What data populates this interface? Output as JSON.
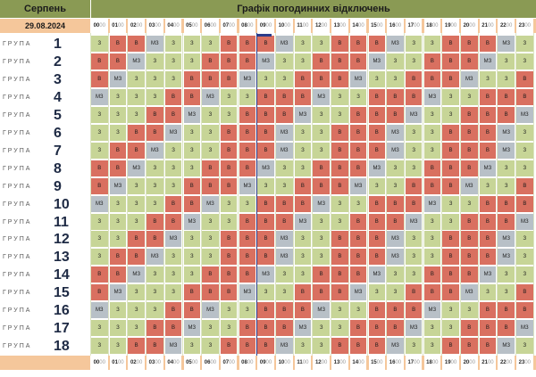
{
  "header": {
    "month": "Серпень",
    "title": "Графік погодинних відключень"
  },
  "date": "29.08.2024",
  "group_label": "ГРУПА",
  "hours": [
    "00",
    "01",
    "02",
    "03",
    "04",
    "05",
    "06",
    "07",
    "08",
    "09",
    "10",
    "11",
    "12",
    "13",
    "14",
    "15",
    "16",
    "17",
    "18",
    "19",
    "20",
    "21",
    "22",
    "23"
  ],
  "minutes": "00",
  "groups": [
    {
      "n": "1",
      "c": [
        "З",
        "В",
        "В",
        "МЗ",
        "З",
        "З",
        "З",
        "В",
        "В",
        "В",
        "МЗ",
        "З",
        "З",
        "В",
        "В",
        "В",
        "МЗ",
        "З",
        "З",
        "В",
        "В",
        "В",
        "МЗ",
        "З"
      ]
    },
    {
      "n": "2",
      "c": [
        "В",
        "В",
        "МЗ",
        "З",
        "З",
        "З",
        "В",
        "В",
        "В",
        "МЗ",
        "З",
        "З",
        "В",
        "В",
        "В",
        "МЗ",
        "З",
        "З",
        "В",
        "В",
        "В",
        "МЗ",
        "З",
        "З"
      ]
    },
    {
      "n": "3",
      "c": [
        "В",
        "МЗ",
        "З",
        "З",
        "З",
        "В",
        "В",
        "В",
        "МЗ",
        "З",
        "З",
        "В",
        "В",
        "В",
        "МЗ",
        "З",
        "З",
        "В",
        "В",
        "В",
        "МЗ",
        "З",
        "З",
        "В"
      ]
    },
    {
      "n": "4",
      "c": [
        "МЗ",
        "З",
        "З",
        "З",
        "В",
        "В",
        "МЗ",
        "З",
        "З",
        "В",
        "В",
        "В",
        "МЗ",
        "З",
        "З",
        "В",
        "В",
        "В",
        "МЗ",
        "З",
        "З",
        "В",
        "В",
        "В"
      ]
    },
    {
      "n": "5",
      "c": [
        "З",
        "З",
        "З",
        "В",
        "В",
        "МЗ",
        "З",
        "З",
        "В",
        "В",
        "В",
        "МЗ",
        "З",
        "З",
        "В",
        "В",
        "В",
        "МЗ",
        "З",
        "З",
        "В",
        "В",
        "В",
        "МЗ"
      ]
    },
    {
      "n": "6",
      "c": [
        "З",
        "З",
        "В",
        "В",
        "МЗ",
        "З",
        "З",
        "В",
        "В",
        "В",
        "МЗ",
        "З",
        "З",
        "В",
        "В",
        "В",
        "МЗ",
        "З",
        "З",
        "В",
        "В",
        "В",
        "МЗ",
        "З"
      ]
    },
    {
      "n": "7",
      "c": [
        "З",
        "В",
        "В",
        "МЗ",
        "З",
        "З",
        "З",
        "В",
        "В",
        "В",
        "МЗ",
        "З",
        "З",
        "В",
        "В",
        "В",
        "МЗ",
        "З",
        "З",
        "В",
        "В",
        "В",
        "МЗ",
        "З"
      ]
    },
    {
      "n": "8",
      "c": [
        "В",
        "В",
        "МЗ",
        "З",
        "З",
        "З",
        "В",
        "В",
        "В",
        "МЗ",
        "З",
        "З",
        "В",
        "В",
        "В",
        "МЗ",
        "З",
        "З",
        "В",
        "В",
        "В",
        "МЗ",
        "З",
        "З"
      ]
    },
    {
      "n": "9",
      "c": [
        "В",
        "МЗ",
        "З",
        "З",
        "З",
        "В",
        "В",
        "В",
        "МЗ",
        "З",
        "З",
        "В",
        "В",
        "В",
        "МЗ",
        "З",
        "З",
        "В",
        "В",
        "В",
        "МЗ",
        "З",
        "З",
        "В"
      ]
    },
    {
      "n": "10",
      "c": [
        "МЗ",
        "З",
        "З",
        "З",
        "В",
        "В",
        "МЗ",
        "З",
        "З",
        "В",
        "В",
        "В",
        "МЗ",
        "З",
        "З",
        "В",
        "В",
        "В",
        "МЗ",
        "З",
        "З",
        "В",
        "В",
        "В"
      ]
    },
    {
      "n": "11",
      "c": [
        "З",
        "З",
        "З",
        "В",
        "В",
        "МЗ",
        "З",
        "З",
        "В",
        "В",
        "В",
        "МЗ",
        "З",
        "З",
        "В",
        "В",
        "В",
        "МЗ",
        "З",
        "З",
        "В",
        "В",
        "В",
        "МЗ"
      ]
    },
    {
      "n": "12",
      "c": [
        "З",
        "З",
        "В",
        "В",
        "МЗ",
        "З",
        "З",
        "В",
        "В",
        "В",
        "МЗ",
        "З",
        "З",
        "В",
        "В",
        "В",
        "МЗ",
        "З",
        "З",
        "В",
        "В",
        "В",
        "МЗ",
        "З"
      ]
    },
    {
      "n": "13",
      "c": [
        "З",
        "В",
        "В",
        "МЗ",
        "З",
        "З",
        "З",
        "В",
        "В",
        "В",
        "МЗ",
        "З",
        "З",
        "В",
        "В",
        "В",
        "МЗ",
        "З",
        "З",
        "В",
        "В",
        "В",
        "МЗ",
        "З"
      ]
    },
    {
      "n": "14",
      "c": [
        "В",
        "В",
        "МЗ",
        "З",
        "З",
        "З",
        "В",
        "В",
        "В",
        "МЗ",
        "З",
        "З",
        "В",
        "В",
        "В",
        "МЗ",
        "З",
        "З",
        "В",
        "В",
        "В",
        "МЗ",
        "З",
        "З"
      ]
    },
    {
      "n": "15",
      "c": [
        "В",
        "МЗ",
        "З",
        "З",
        "З",
        "В",
        "В",
        "В",
        "МЗ",
        "З",
        "З",
        "В",
        "В",
        "В",
        "МЗ",
        "З",
        "З",
        "В",
        "В",
        "В",
        "МЗ",
        "З",
        "З",
        "В"
      ]
    },
    {
      "n": "16",
      "c": [
        "МЗ",
        "З",
        "З",
        "З",
        "В",
        "В",
        "МЗ",
        "З",
        "З",
        "В",
        "В",
        "В",
        "МЗ",
        "З",
        "З",
        "В",
        "В",
        "В",
        "МЗ",
        "З",
        "З",
        "В",
        "В",
        "В"
      ]
    },
    {
      "n": "17",
      "c": [
        "З",
        "З",
        "З",
        "В",
        "В",
        "МЗ",
        "З",
        "З",
        "В",
        "В",
        "В",
        "МЗ",
        "З",
        "З",
        "В",
        "В",
        "В",
        "МЗ",
        "З",
        "З",
        "В",
        "В",
        "В",
        "МЗ"
      ]
    },
    {
      "n": "18",
      "c": [
        "З",
        "З",
        "В",
        "В",
        "МЗ",
        "З",
        "З",
        "В",
        "В",
        "В",
        "МЗ",
        "З",
        "З",
        "В",
        "В",
        "В",
        "МЗ",
        "З",
        "З",
        "В",
        "В",
        "В",
        "МЗ",
        "З"
      ]
    }
  ],
  "colors": {
    "З": "#c7d597",
    "В": "#d97060",
    "МЗ": "#b8c0c7",
    "header": "#8a9a54",
    "date_band": "#f5c79b"
  },
  "current_hour": "08"
}
